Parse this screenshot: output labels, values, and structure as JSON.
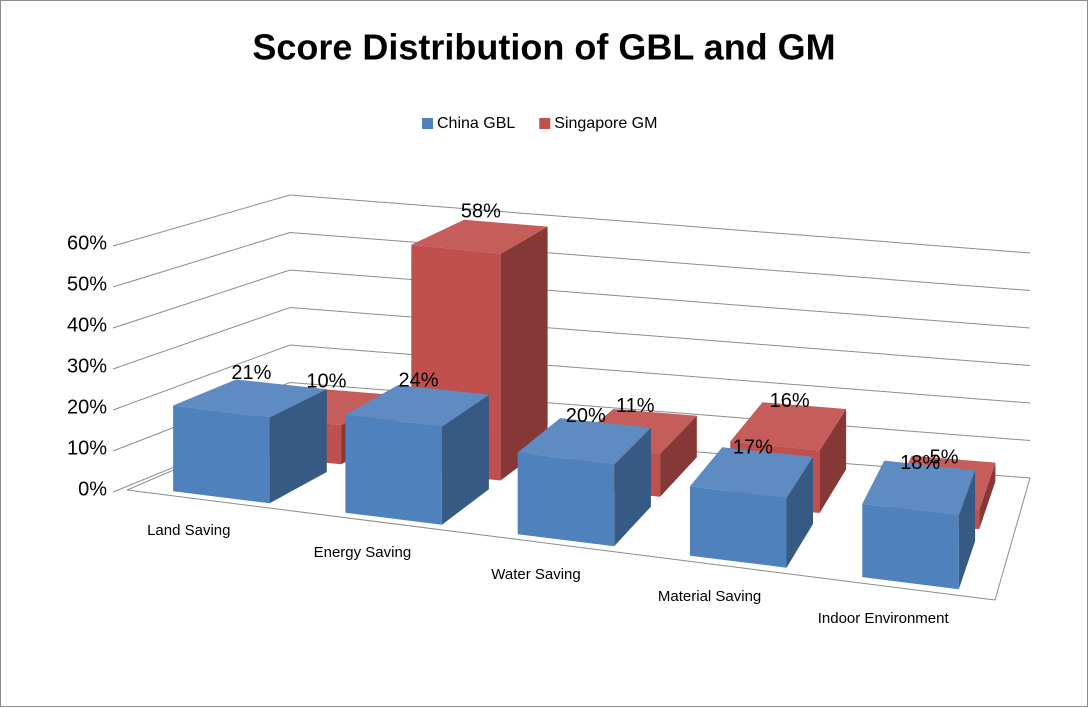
{
  "chart_data": {
    "type": "bar3d",
    "title": "Score Distribution of GBL and GM",
    "categories": [
      "Land Saving",
      "Energy Saving",
      "Water Saving",
      "Material Saving",
      "Indoor Environment"
    ],
    "series": [
      {
        "name": "China GBL",
        "color": "#4f81bd",
        "values": [
          21,
          24,
          20,
          17,
          18
        ],
        "value_labels": [
          "21%",
          "24%",
          "20%",
          "17%",
          "18%"
        ]
      },
      {
        "name": "Singapore GM",
        "color": "#c0504d",
        "values": [
          10,
          58,
          11,
          16,
          5
        ],
        "value_labels": [
          "10%",
          "58%",
          "11%",
          "16%",
          "5%"
        ]
      }
    ],
    "ylim": [
      0,
      60
    ],
    "yticks": [
      {
        "value": 0,
        "label": "0%"
      },
      {
        "value": 10,
        "label": "10%"
      },
      {
        "value": 20,
        "label": "20%"
      },
      {
        "value": 30,
        "label": "30%"
      },
      {
        "value": 40,
        "label": "40%"
      },
      {
        "value": 50,
        "label": "50%"
      },
      {
        "value": 60,
        "label": "60%"
      }
    ],
    "grid": true
  }
}
